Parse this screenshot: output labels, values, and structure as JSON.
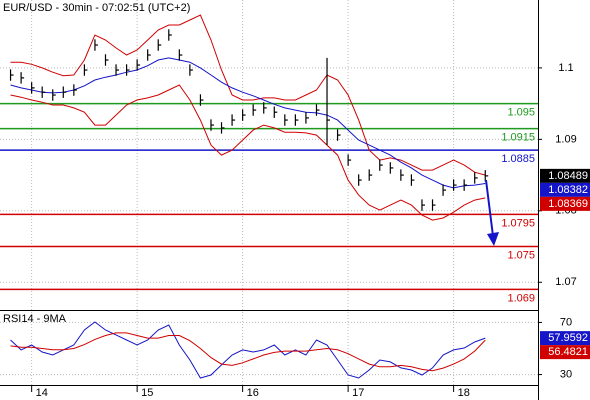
{
  "chart_data": [
    {
      "type": "ohlc",
      "title": "EUR/USD - 30min - 07:02:51 (UTC+2)",
      "x": [
        13.8,
        13.9,
        14.0,
        14.1,
        14.2,
        14.3,
        14.4,
        14.5,
        14.6,
        14.7,
        14.8,
        14.9,
        15.0,
        15.1,
        15.2,
        15.3,
        15.4,
        15.5,
        15.6,
        15.7,
        15.8,
        15.9,
        16.0,
        16.1,
        16.2,
        16.3,
        16.4,
        16.5,
        16.6,
        16.7,
        16.8,
        16.9,
        17.0,
        17.1,
        17.2,
        17.3,
        17.4,
        17.5,
        17.6,
        17.7,
        17.8,
        17.9,
        18.0,
        18.1,
        18.2,
        18.3
      ],
      "high": [
        1.0998,
        1.0994,
        1.098,
        1.0974,
        1.097,
        1.0974,
        1.0977,
        1.1005,
        1.104,
        1.1019,
        1.1005,
        1.1005,
        1.1012,
        1.1026,
        1.104,
        1.1054,
        1.1026,
        1.1005,
        1.0963,
        1.0928,
        1.0924,
        1.0935,
        1.0942,
        1.0949,
        1.0952,
        1.0946,
        1.0935,
        1.0935,
        1.0938,
        1.0949,
        1.1014,
        1.0914,
        1.0879,
        1.0851,
        1.0858,
        1.0872,
        1.0868,
        1.0858,
        1.0851,
        1.0816,
        1.0816,
        1.0837,
        1.0844,
        1.0844,
        1.0854,
        1.0857
      ],
      "low": [
        1.0982,
        1.0978,
        1.0964,
        1.0958,
        1.0954,
        1.0958,
        1.0961,
        1.0989,
        1.1024,
        1.1003,
        1.0989,
        1.0989,
        1.0996,
        1.101,
        1.1024,
        1.1038,
        1.101,
        1.0989,
        1.0947,
        1.0912,
        1.0908,
        1.0919,
        1.0926,
        1.0933,
        1.0936,
        1.093,
        1.0919,
        1.0919,
        1.0922,
        1.0933,
        1.0892,
        1.0898,
        1.0863,
        1.0835,
        1.0842,
        1.0856,
        1.0852,
        1.0842,
        1.0835,
        1.08,
        1.08,
        1.0821,
        1.0828,
        1.0828,
        1.0838,
        1.0841
      ],
      "close": [
        1.099,
        1.0986,
        1.0972,
        1.0966,
        1.0962,
        1.0966,
        1.0969,
        1.0997,
        1.1032,
        1.1011,
        1.0997,
        1.0997,
        1.1004,
        1.1018,
        1.1032,
        1.1046,
        1.1018,
        1.0997,
        1.0955,
        1.092,
        1.0916,
        1.0927,
        1.0934,
        1.0941,
        1.0944,
        1.0938,
        1.0927,
        1.0927,
        1.093,
        1.0941,
        1.0927,
        1.0906,
        1.0871,
        1.0843,
        1.085,
        1.0864,
        1.086,
        1.085,
        1.0843,
        1.0808,
        1.0808,
        1.0829,
        1.0836,
        1.0836,
        1.0846,
        1.08489
      ],
      "upper_band": [
        1.1008,
        1.1008,
        1.1005,
        1.1,
        1.0994,
        1.0989,
        1.099,
        1.1011,
        1.1046,
        1.1039,
        1.1028,
        1.1018,
        1.1025,
        1.1039,
        1.1053,
        1.106,
        1.106,
        1.1067,
        1.1074,
        1.1039,
        1.0997,
        1.0962,
        1.0955,
        1.0955,
        1.0958,
        1.0958,
        1.0955,
        1.0955,
        1.0962,
        1.0969,
        1.099,
        1.0983,
        1.0962,
        1.0927,
        1.0885,
        1.0871,
        1.0874,
        1.0871,
        1.0864,
        1.0857,
        1.0857,
        1.0864,
        1.0871,
        1.0864,
        1.0854,
        1.085
      ],
      "lower_band": [
        1.0962,
        1.0959,
        1.0955,
        1.0952,
        1.0948,
        1.0948,
        1.0944,
        1.0938,
        1.092,
        1.092,
        1.0934,
        1.0948,
        1.0955,
        1.0958,
        1.0962,
        1.0969,
        1.0976,
        1.0955,
        1.0927,
        1.0892,
        1.0878,
        1.0885,
        1.0899,
        1.0913,
        1.092,
        1.0916,
        1.091,
        1.091,
        1.0909,
        1.0906,
        1.0892,
        1.0878,
        1.0843,
        1.0822,
        1.0808,
        1.0801,
        1.0808,
        1.0815,
        1.0808,
        1.0794,
        1.0787,
        1.079,
        1.0798,
        1.0808,
        1.0815,
        1.0818
      ],
      "ma": [
        1.0976,
        1.0972,
        1.0969,
        1.0966,
        1.0965,
        1.0966,
        1.0969,
        1.0975,
        1.0983,
        1.0987,
        1.099,
        1.0994,
        1.0997,
        1.1003,
        1.1011,
        1.1014,
        1.1011,
        1.1008,
        1.1,
        1.099,
        1.098,
        1.0972,
        1.0966,
        1.0961,
        1.0955,
        1.0949,
        1.0944,
        1.0941,
        1.0938,
        1.0937,
        1.0934,
        1.0927,
        1.0913,
        1.0899,
        1.0892,
        1.0885,
        1.0878,
        1.0868,
        1.086,
        1.085,
        1.0843,
        1.0836,
        1.0832,
        1.0835,
        1.0836,
        1.08382
      ],
      "bar_color": "#000000",
      "band_color": "#d00000",
      "ma_color": "#1414c8",
      "levels": [
        {
          "value": 1.095,
          "color": "#1e9a1e"
        },
        {
          "value": 1.0915,
          "color": "#1e9a1e"
        },
        {
          "value": 1.0885,
          "color": "#1414c8"
        },
        {
          "value": 1.0795,
          "color": "#d00000"
        },
        {
          "value": 1.075,
          "color": "#d00000"
        },
        {
          "value": 1.069,
          "color": "#d00000"
        }
      ],
      "price_labels": [
        {
          "value": 1.08489,
          "color": "#000000"
        },
        {
          "value": 1.08382,
          "color": "#1414c8"
        },
        {
          "value": 1.08369,
          "color": "#d00000"
        }
      ],
      "xlim": [
        13.7,
        18.8
      ],
      "xticks": [
        14,
        15,
        16,
        17,
        18
      ],
      "ylim": [
        1.0664,
        1.1095
      ],
      "yticks": [
        1.07,
        1.08,
        1.09,
        1.1
      ],
      "grid": true
    },
    {
      "type": "line",
      "title": "RSI14 - 9MA",
      "series": [
        {
          "color": "#1414c8",
          "values": [
            56.5,
            48.9,
            52.7,
            47.3,
            45.0,
            48.9,
            52.7,
            64.2,
            70.3,
            64.2,
            60.4,
            56.5,
            52.7,
            56.5,
            64.2,
            68.0,
            52.7,
            41.2,
            27.4,
            29.7,
            37.4,
            45.0,
            48.9,
            47.3,
            48.9,
            52.7,
            45.0,
            48.9,
            45.0,
            56.5,
            52.7,
            41.2,
            29.7,
            27.4,
            33.5,
            41.2,
            39.7,
            35.1,
            33.5,
            29.7,
            35.1,
            45.0,
            48.9,
            50.4,
            55.0,
            57.9592
          ]
        },
        {
          "color": "#d00000",
          "values": [
            52,
            51,
            51,
            50,
            49,
            49,
            50,
            53,
            57,
            60,
            62,
            62,
            60,
            58,
            58,
            60,
            60,
            56,
            50,
            43,
            38,
            37,
            39,
            42,
            45,
            47,
            48,
            48,
            48,
            49,
            50,
            49,
            46,
            42,
            38,
            36,
            36,
            37,
            36,
            34,
            33,
            35,
            38,
            42,
            48,
            56.4821
          ]
        }
      ],
      "ylim": [
        22,
        78
      ],
      "yticks": [
        30,
        70
      ],
      "grid": true
    }
  ]
}
